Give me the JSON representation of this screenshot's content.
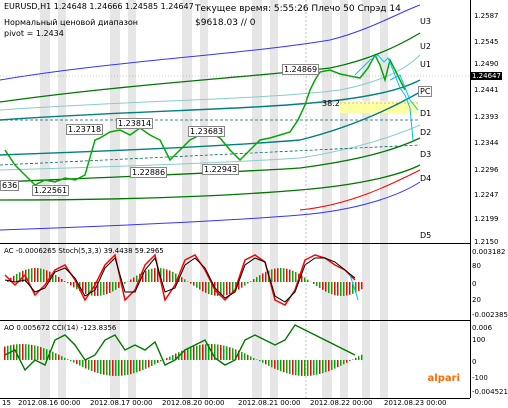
{
  "header": {
    "symbol_line": "EURUSD,H1  1.24648 1.24666 1.24585 1.24647",
    "subtitle1": "Нормальный ценовой диапазон",
    "subtitle2": "pivot = 1.2434",
    "time_info": "Текущее время: 5:55:26 Плечо 50 Спрэд 14",
    "balance_info": "$9618.03    // 0"
  },
  "levels": {
    "u3": "U3",
    "u2": "U2",
    "u1": "U1",
    "pc": "PC",
    "d1": "D1",
    "d2": "D2",
    "d3": "D3",
    "d4": "D4",
    "d5": "D5"
  },
  "price_labels": {
    "p1": "1.24869",
    "p2": "1.23718",
    "p3": "1.23814",
    "p4": "1.23683",
    "p5": "1.22886",
    "p6": "1.22943",
    "p7": "1.22561",
    "p8": "636",
    "fib": "38.2"
  },
  "price_axis": [
    "1.2587",
    "1.2545",
    "1.2490",
    "1.24647",
    "1.2441",
    "1.2393",
    "1.2344",
    "1.2296",
    "1.2247",
    "1.2199",
    "1.2150"
  ],
  "current_price": "1.24647",
  "ac_panel": {
    "label": "AC -0.0006265  Stoch(5,3,3) 39.4438 59.2965",
    "axis": [
      "0.003182",
      "0",
      "-0.002385"
    ],
    "stoch_axis": [
      "80",
      "20"
    ]
  },
  "ao_panel": {
    "label": "AO 0.005672  CCI(14) -123.8356",
    "axis": [
      "0.006",
      "0",
      "-0.004521"
    ],
    "cci_axis": [
      "100",
      "-100"
    ]
  },
  "time_axis": [
    "15",
    "2012.08.16 00:00",
    "2012.08.17 00:00",
    "2012.08.20 00:00",
    "2012.08.21 00:00",
    "2012.08.22 00:00",
    "2012.08.23 00:00"
  ],
  "logo": "alpari",
  "colors": {
    "candle": "#00aa00",
    "channel_blue": "#0000ff",
    "channel_green": "#007700",
    "channel_teal": "#008080",
    "forecast": "#00bfff",
    "resistance": "#ff0000",
    "zone": "#ffff99"
  }
}
